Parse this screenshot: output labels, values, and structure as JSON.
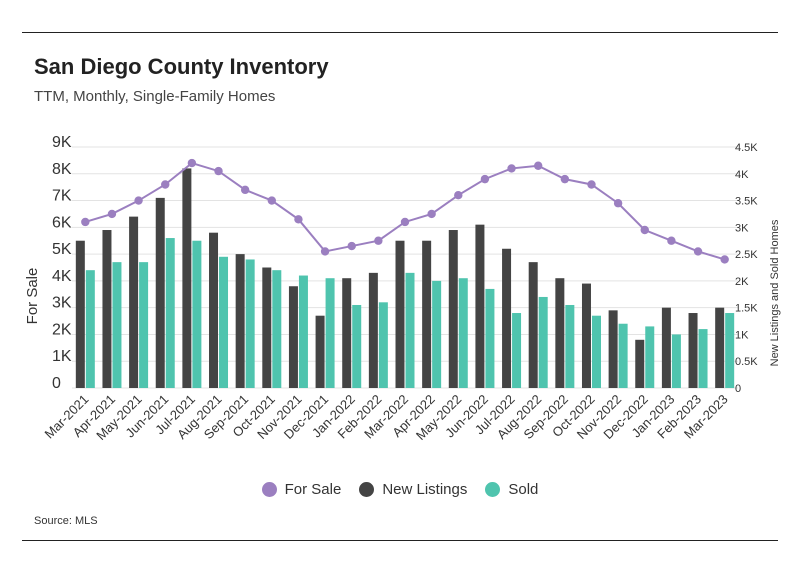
{
  "title": "San Diego County Inventory",
  "subtitle": "TTM, Monthly, Single-Family Homes",
  "source": "Source: MLS",
  "colors": {
    "for_sale": "#9b7fc0",
    "new_listings": "#444444",
    "sold": "#4fc4ae"
  },
  "chart_data": {
    "type": "bar",
    "title": "San Diego County Inventory",
    "categories": [
      "Mar-2021",
      "Apr-2021",
      "May-2021",
      "Jun-2021",
      "Jul-2021",
      "Aug-2021",
      "Sep-2021",
      "Oct-2021",
      "Nov-2021",
      "Dec-2021",
      "Jan-2022",
      "Feb-2022",
      "Mar-2022",
      "Apr-2022",
      "May-2022",
      "Jun-2022",
      "Jul-2022",
      "Aug-2022",
      "Sep-2022",
      "Oct-2022",
      "Nov-2022",
      "Dec-2022",
      "Jan-2023",
      "Feb-2023",
      "Mar-2023"
    ],
    "ylabel": "For Sale",
    "y2label": "New Listings and Sold Homes",
    "ylim": [
      0,
      9000
    ],
    "y2lim": [
      0,
      4500
    ],
    "y_ticks": [
      "0",
      "1K",
      "2K",
      "3K",
      "4K",
      "5K",
      "6K",
      "7K",
      "8K",
      "9K"
    ],
    "y2_ticks": [
      "0",
      "0.5K",
      "1K",
      "1.5K",
      "2K",
      "2.5K",
      "3K",
      "3.5K",
      "4K",
      "4.5K"
    ],
    "series": [
      {
        "name": "For Sale",
        "kind": "line",
        "axis": "left",
        "values": [
          6200,
          6500,
          7000,
          7600,
          8400,
          8100,
          7400,
          7000,
          6300,
          5100,
          5300,
          5500,
          6200,
          6500,
          7200,
          7800,
          8200,
          8300,
          7800,
          7600,
          6900,
          5900,
          5500,
          5100,
          4800
        ]
      },
      {
        "name": "New Listings",
        "kind": "bar",
        "axis": "right",
        "values": [
          2750,
          2950,
          3200,
          3550,
          4100,
          2900,
          2500,
          2250,
          1900,
          1350,
          2050,
          2150,
          2750,
          2750,
          2950,
          3050,
          2600,
          2350,
          2050,
          1950,
          1450,
          900,
          1500,
          1400,
          1500
        ]
      },
      {
        "name": "Sold",
        "kind": "bar",
        "axis": "right",
        "values": [
          2200,
          2350,
          2350,
          2800,
          2750,
          2450,
          2400,
          2200,
          2100,
          2050,
          1550,
          1600,
          2150,
          2000,
          2050,
          1850,
          1400,
          1700,
          1550,
          1350,
          1200,
          1150,
          1000,
          1100,
          1400
        ]
      }
    ],
    "legend": [
      "For Sale",
      "New Listings",
      "Sold"
    ],
    "legend_position": "bottom-center"
  }
}
